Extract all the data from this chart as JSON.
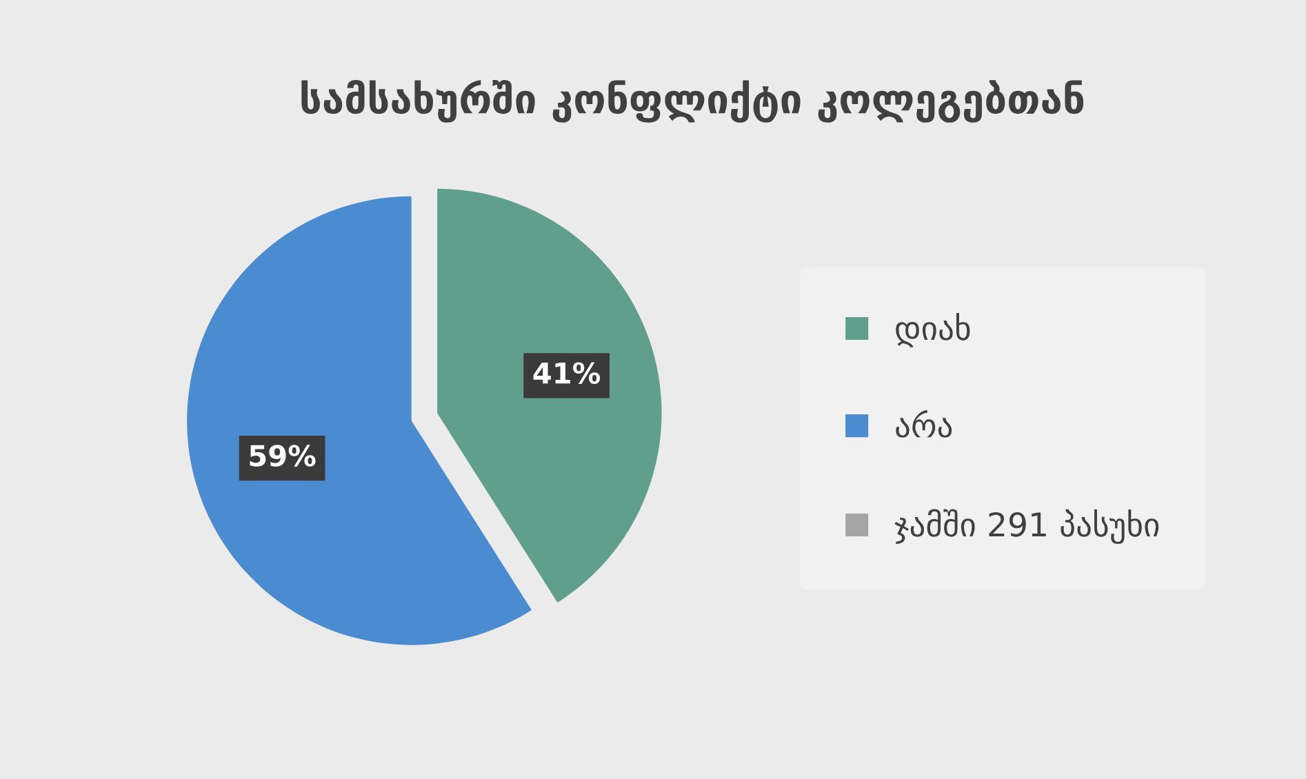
{
  "chart_data": {
    "type": "pie",
    "title": "სამსახურში კონფლიქტი კოლეგებთან",
    "categories": [
      "დიახ",
      "არა",
      "ჯამში 291 პასუხი"
    ],
    "values": [
      41,
      59,
      0
    ],
    "colors": [
      "#5f9f8c",
      "#4a8ccf",
      "#a5a5a5"
    ],
    "value_labels": [
      "41%",
      "59%",
      null
    ],
    "legend": "right"
  }
}
